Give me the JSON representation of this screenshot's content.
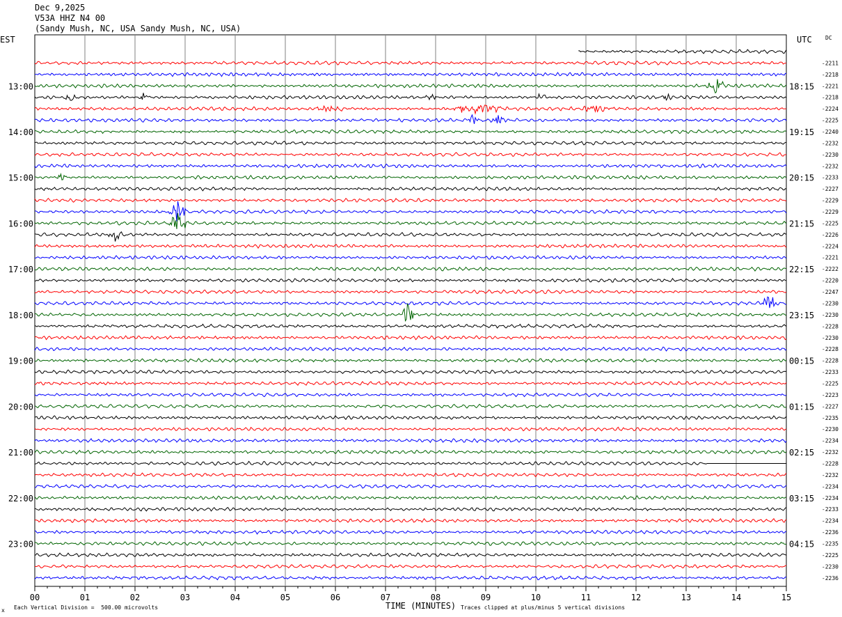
{
  "header": {
    "date": "Dec 9,2025",
    "station": "V53A HHZ N4 00",
    "location": "(Sandy Mush, NC, USA Sandy Mush, NC, USA)"
  },
  "left_axis_label": "EST",
  "right_axis_label": "UTC",
  "dc_label": "DC",
  "footer": {
    "scale_mark": "x",
    "scale_note": "Each Vertical Division =  500.00 microvolts",
    "clip_note": "Traces clipped at plus/minus 5 vertical divisions"
  },
  "colors": {
    "trace_cycle": [
      "#000000",
      "#ff0000",
      "#0000ff",
      "#006400"
    ],
    "grid": "#808080"
  },
  "chart_data": {
    "type": "line",
    "title": "",
    "xlabel": "TIME (MINUTES)",
    "ylabel": "",
    "xlim": [
      0,
      15
    ],
    "x_tick_labels": [
      "00",
      "01",
      "02",
      "03",
      "04",
      "05",
      "06",
      "07",
      "08",
      "09",
      "10",
      "11",
      "12",
      "13",
      "14",
      "15"
    ],
    "grid": true,
    "row_interval_minutes": 15,
    "left_time_labels": [
      {
        "row": 3,
        "label": "13:00"
      },
      {
        "row": 7,
        "label": "14:00"
      },
      {
        "row": 11,
        "label": "15:00"
      },
      {
        "row": 15,
        "label": "16:00"
      },
      {
        "row": 19,
        "label": "17:00"
      },
      {
        "row": 23,
        "label": "18:00"
      },
      {
        "row": 27,
        "label": "19:00"
      },
      {
        "row": 31,
        "label": "20:00"
      },
      {
        "row": 35,
        "label": "21:00"
      },
      {
        "row": 39,
        "label": "22:00"
      },
      {
        "row": 43,
        "label": "23:00"
      }
    ],
    "right_time_labels": [
      {
        "row": 3,
        "label": "18:15"
      },
      {
        "row": 7,
        "label": "19:15"
      },
      {
        "row": 11,
        "label": "20:15"
      },
      {
        "row": 15,
        "label": "21:15"
      },
      {
        "row": 19,
        "label": "22:15"
      },
      {
        "row": 23,
        "label": "23:15"
      },
      {
        "row": 27,
        "label": "00:15"
      },
      {
        "row": 31,
        "label": "01:15"
      },
      {
        "row": 35,
        "label": "02:15"
      },
      {
        "row": 39,
        "label": "03:15"
      },
      {
        "row": 43,
        "label": "04:15"
      }
    ],
    "dc_offsets": [
      "",
      "-2211",
      "-2218",
      "-2221",
      "-2218",
      "-2224",
      "-2225",
      "-2240",
      "-2232",
      "-2230",
      "-2232",
      "-2233",
      "-2227",
      "-2229",
      "-2229",
      "-2225",
      "-2226",
      "-2224",
      "-2221",
      "-2222",
      "-2220",
      "-2247",
      "-2230",
      "-2230",
      "-2228",
      "-2230",
      "-2228",
      "-2228",
      "-2233",
      "-2225",
      "-2223",
      "-2227",
      "-2235",
      "-2230",
      "-2234",
      "-2232",
      "-2228",
      "-2232",
      "-2234",
      "-2234",
      "-2233",
      "-2234",
      "-2236",
      "-2235",
      "-2225",
      "-2230",
      "-2236"
    ],
    "traces": {
      "count": 47,
      "first_row_starts_at_minute": 10.85,
      "events": [
        {
          "row": 3,
          "minute": 13.6,
          "amplitude_divisions": 0.8,
          "duration_minutes": 0.3
        },
        {
          "row": 4,
          "minute": 0.7,
          "amplitude_divisions": 0.3,
          "duration_minutes": 0.3
        },
        {
          "row": 4,
          "minute": 2.2,
          "amplitude_divisions": 0.5,
          "duration_minutes": 0.15
        },
        {
          "row": 4,
          "minute": 7.9,
          "amplitude_divisions": 0.3,
          "duration_minutes": 0.2
        },
        {
          "row": 4,
          "minute": 10.1,
          "amplitude_divisions": 0.5,
          "duration_minutes": 0.15
        },
        {
          "row": 4,
          "minute": 12.6,
          "amplitude_divisions": 0.4,
          "duration_minutes": 0.15
        },
        {
          "row": 5,
          "minute": 5.9,
          "amplitude_divisions": 0.3,
          "duration_minutes": 0.7
        },
        {
          "row": 5,
          "minute": 8.8,
          "amplitude_divisions": 0.4,
          "duration_minutes": 1.3
        },
        {
          "row": 5,
          "minute": 11.2,
          "amplitude_divisions": 0.3,
          "duration_minutes": 0.8
        },
        {
          "row": 6,
          "minute": 8.75,
          "amplitude_divisions": 0.5,
          "duration_minutes": 0.25
        },
        {
          "row": 6,
          "minute": 9.25,
          "amplitude_divisions": 0.5,
          "duration_minutes": 0.2
        },
        {
          "row": 11,
          "minute": 0.55,
          "amplitude_divisions": 0.4,
          "duration_minutes": 0.1
        },
        {
          "row": 14,
          "minute": 2.85,
          "amplitude_divisions": 0.9,
          "duration_minutes": 0.4
        },
        {
          "row": 15,
          "minute": 2.85,
          "amplitude_divisions": 0.9,
          "duration_minutes": 0.35
        },
        {
          "row": 16,
          "minute": 1.6,
          "amplitude_divisions": 0.6,
          "duration_minutes": 0.2
        },
        {
          "row": 22,
          "minute": 14.65,
          "amplitude_divisions": 1.1,
          "duration_minutes": 0.2
        },
        {
          "row": 23,
          "minute": 7.45,
          "amplitude_divisions": 1.2,
          "duration_minutes": 0.2
        }
      ],
      "flat_segments": [
        {
          "row": 36,
          "from_minute": 13.4,
          "to_minute": 15
        }
      ]
    }
  }
}
